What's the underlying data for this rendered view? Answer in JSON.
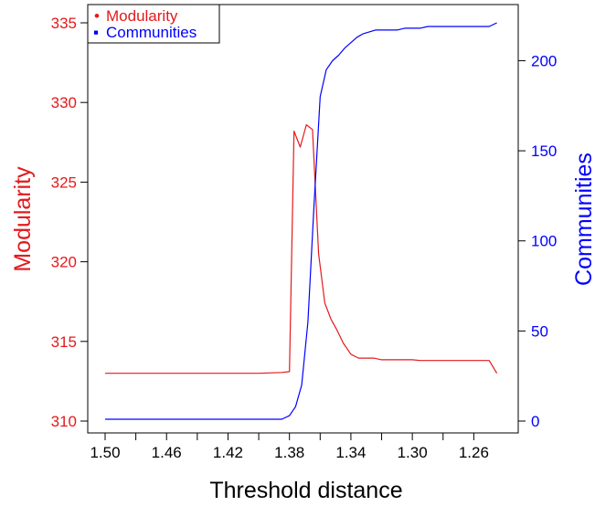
{
  "colors": {
    "modularity": "#e31a1c",
    "communities": "#0000ff",
    "axis": "#000000",
    "background": "#ffffff"
  },
  "chart_data": {
    "type": "line",
    "title": "",
    "xlabel": "Threshold distance",
    "ylabel_left": "Modularity",
    "ylabel_right": "Communities",
    "x_reversed": true,
    "xlim": [
      1.5,
      1.24
    ],
    "ylim_left": [
      310,
      335
    ],
    "ylim_right": [
      0,
      220
    ],
    "x_ticks": [
      1.5,
      1.48,
      1.46,
      1.44,
      1.42,
      1.4,
      1.38,
      1.36,
      1.34,
      1.32,
      1.3,
      1.28,
      1.26
    ],
    "x_tick_labels": [
      "1.50",
      "",
      "1.46",
      "",
      "1.42",
      "",
      "1.38",
      "",
      "1.34",
      "",
      "1.30",
      "",
      "1.26"
    ],
    "y_left_ticks": [
      310,
      315,
      320,
      325,
      330,
      335
    ],
    "y_left_tick_labels": [
      "310",
      "315",
      "320",
      "325",
      "330",
      "335"
    ],
    "y_right_ticks": [
      0,
      50,
      100,
      150,
      200
    ],
    "y_right_tick_labels": [
      "0",
      "50",
      "100",
      "150",
      "200"
    ],
    "legend": {
      "position": "top-left",
      "entries": [
        {
          "label": "Modularity",
          "marker": "•",
          "color": "#e31a1c"
        },
        {
          "label": "Communities",
          "marker": "▪",
          "color": "#0000ff"
        }
      ]
    },
    "series": [
      {
        "name": "Modularity",
        "axis": "left",
        "color": "#e31a1c",
        "x": [
          1.5,
          1.48,
          1.46,
          1.44,
          1.42,
          1.4,
          1.385,
          1.38,
          1.377,
          1.373,
          1.369,
          1.365,
          1.361,
          1.357,
          1.353,
          1.349,
          1.345,
          1.34,
          1.335,
          1.33,
          1.325,
          1.32,
          1.315,
          1.31,
          1.305,
          1.3,
          1.295,
          1.29,
          1.28,
          1.27,
          1.26,
          1.25,
          1.245
        ],
        "y": [
          313.0,
          313.0,
          313.0,
          313.0,
          313.0,
          313.0,
          313.05,
          313.1,
          328.2,
          327.2,
          328.6,
          328.3,
          320.5,
          317.4,
          316.4,
          315.7,
          314.9,
          314.2,
          313.95,
          313.95,
          313.95,
          313.85,
          313.85,
          313.85,
          313.85,
          313.85,
          313.8,
          313.8,
          313.8,
          313.8,
          313.8,
          313.8,
          313.0
        ]
      },
      {
        "name": "Communities",
        "axis": "right",
        "color": "#0000ff",
        "x": [
          1.5,
          1.48,
          1.46,
          1.44,
          1.42,
          1.4,
          1.385,
          1.38,
          1.376,
          1.372,
          1.368,
          1.364,
          1.36,
          1.356,
          1.352,
          1.348,
          1.344,
          1.34,
          1.336,
          1.332,
          1.328,
          1.324,
          1.32,
          1.315,
          1.31,
          1.305,
          1.3,
          1.295,
          1.29,
          1.28,
          1.27,
          1.26,
          1.25,
          1.245
        ],
        "y": [
          1,
          1,
          1,
          1,
          1,
          1,
          1,
          3,
          8,
          20,
          55,
          120,
          180,
          195,
          200,
          203,
          207,
          210,
          213,
          215,
          216,
          217,
          217,
          217,
          217,
          218,
          218,
          218,
          219,
          219,
          219,
          219,
          219,
          221
        ]
      }
    ]
  }
}
